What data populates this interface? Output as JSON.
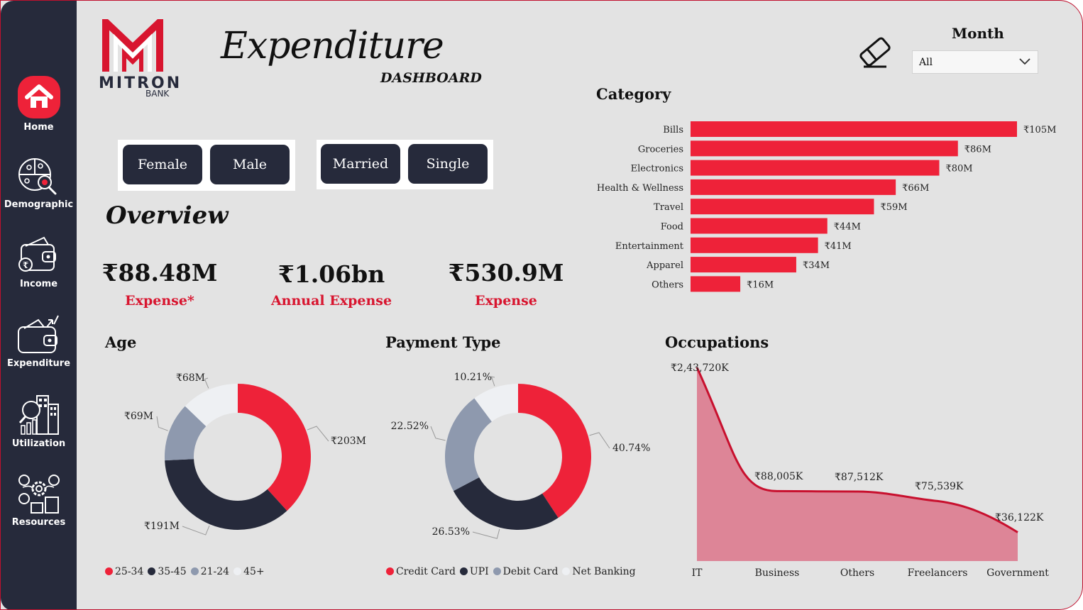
{
  "brand": {
    "name": "MITRON",
    "sub": "BANK"
  },
  "title": {
    "main": "Expenditure",
    "sub": "DASHBOARD"
  },
  "nav": [
    {
      "label": "Home",
      "icon": "home-icon"
    },
    {
      "label": "Demographic",
      "icon": "demographic-icon"
    },
    {
      "label": "Income",
      "icon": "income-wallet-icon"
    },
    {
      "label": "Expenditure",
      "icon": "expenditure-wallet-icon"
    },
    {
      "label": "Utilization",
      "icon": "utilization-icon"
    },
    {
      "label": "Resources",
      "icon": "resources-icon"
    }
  ],
  "filters": {
    "gender": [
      "Female",
      "Male"
    ],
    "marital": [
      "Married",
      "Single"
    ],
    "month_label": "Month",
    "month_value": "All"
  },
  "overview": {
    "title": "Overview",
    "kpis": [
      {
        "value": "₹88.48M",
        "label": "Expense*"
      },
      {
        "value": "₹1.06bn",
        "label": "Annual Expense"
      },
      {
        "value": "₹530.9M",
        "label": "Expense"
      }
    ]
  },
  "chart_data": [
    {
      "type": "bar",
      "orientation": "horizontal",
      "title": "Category",
      "categories": [
        "Bills",
        "Groceries",
        "Electronics",
        "Health & Wellness",
        "Travel",
        "Food",
        "Entertainment",
        "Apparel",
        "Others"
      ],
      "values": [
        105,
        86,
        80,
        66,
        59,
        44,
        41,
        34,
        16
      ],
      "labels": [
        "₹105M",
        "₹86M",
        "₹80M",
        "₹66M",
        "₹59M",
        "₹44M",
        "₹41M",
        "₹34M",
        "₹16M"
      ],
      "color": "#ee2239"
    },
    {
      "type": "pie",
      "title": "Age",
      "categories": [
        "25-34",
        "35-45",
        "21-24",
        "45+"
      ],
      "values": [
        203,
        191,
        69,
        68
      ],
      "labels": [
        "₹203M",
        "₹191M",
        "₹69M",
        "₹68M"
      ],
      "colors": [
        "#ee2239",
        "#262a3b",
        "#8e99ae",
        "#eef0f3"
      ]
    },
    {
      "type": "pie",
      "title": "Payment Type",
      "categories": [
        "Credit Card",
        "UPI",
        "Debit Card",
        "Net Banking"
      ],
      "values": [
        40.74,
        26.53,
        22.52,
        10.21
      ],
      "labels": [
        "40.74%",
        "26.53%",
        "22.52%",
        "10.21%"
      ],
      "colors": [
        "#ee2239",
        "#262a3b",
        "#8e99ae",
        "#eef0f3"
      ]
    },
    {
      "type": "area",
      "title": "Occupations",
      "categories": [
        "IT",
        "Business",
        "Others",
        "Freelancers",
        "Government"
      ],
      "values": [
        243720,
        88005,
        87512,
        75539,
        36122
      ],
      "labels": [
        "₹2,43,720K",
        "₹88,005K",
        "₹87,512K",
        "₹75,539K",
        "₹36,122K"
      ],
      "line_color": "#c8102e",
      "fill_color": "#dd8597"
    }
  ]
}
